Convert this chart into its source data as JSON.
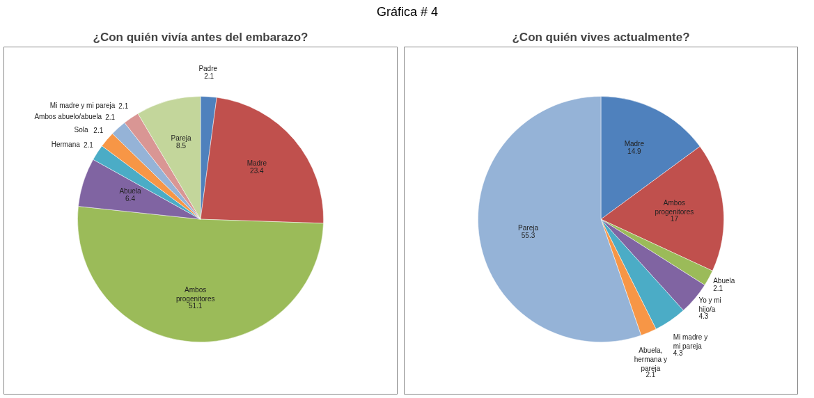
{
  "chart_data": [
    {
      "type": "pie",
      "title": "¿Con quién vivía antes del embarazo?",
      "annotations": [
        "Gráfica # 4"
      ],
      "data_labels": true,
      "categories": [
        "Padre ",
        "Madre",
        "Ambos progenitores",
        "Abuela",
        "Hermana",
        "Sola ",
        "Ambos abuelo/abuela",
        "Mi madre y mi pareja",
        "Pareja"
      ],
      "values": [
        2.1,
        23.4,
        51.1,
        6.4,
        2.1,
        2.1,
        2.1,
        2.1,
        8.5
      ],
      "colors": [
        "#4f81bd",
        "#c0504d",
        "#9bbb59",
        "#8064a2",
        "#4bacc6",
        "#f79646",
        "#95b3d7",
        "#d99694",
        "#c3d69b"
      ]
    },
    {
      "type": "pie",
      "title": "¿Con quién vives actualmente?",
      "data_labels": true,
      "categories": [
        "Madre",
        "Ambos progenitores",
        "Abuela",
        "Yo y mi hijo/a",
        "Mi madre  y mi pareja",
        "Abuela, hermana y pareja",
        "Pareja"
      ],
      "values": [
        14.9,
        17,
        2.1,
        4.3,
        4.3,
        2.1,
        55.3
      ],
      "colors": [
        "#4f81bd",
        "#c0504d",
        "#9bbb59",
        "#8064a2",
        "#4bacc6",
        "#f79646",
        "#95b3d7"
      ]
    }
  ]
}
